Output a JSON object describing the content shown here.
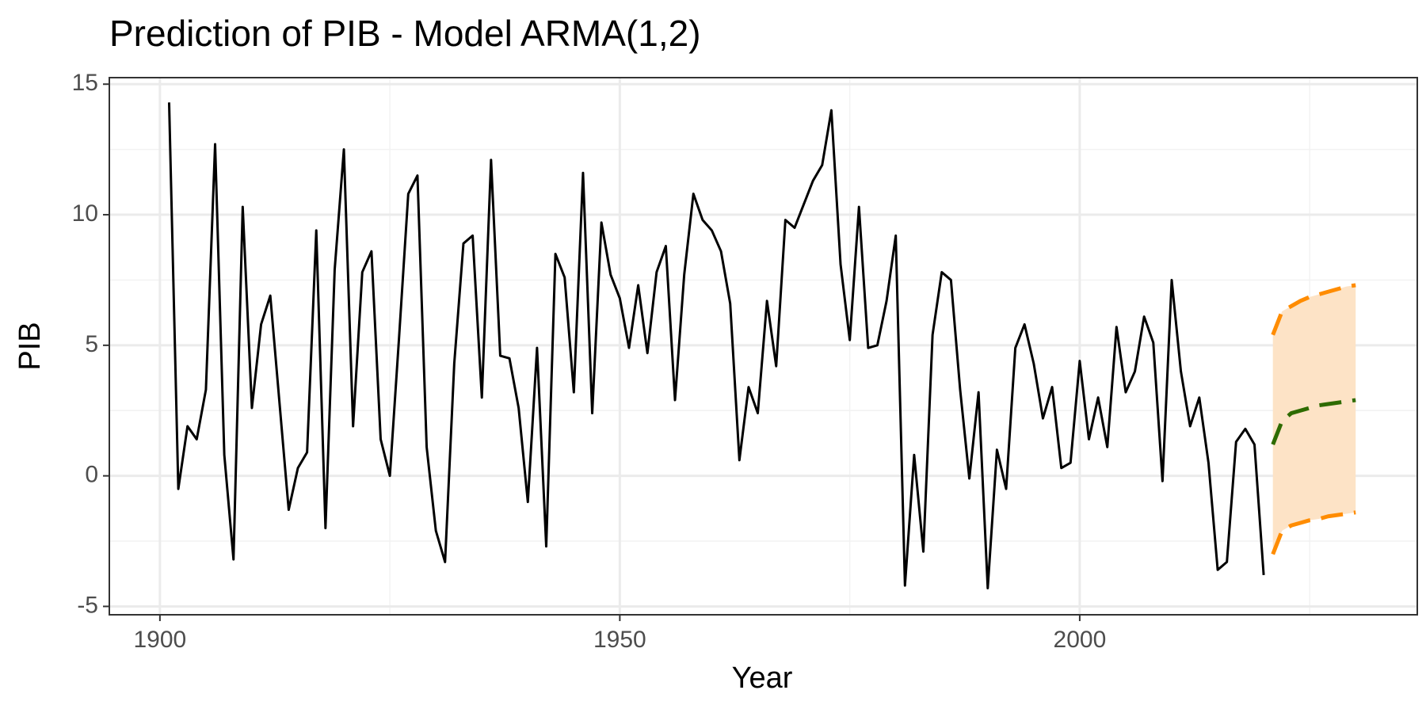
{
  "chart_data": {
    "type": "line",
    "title": "Prediction of PIB - Model ARMA(1,2)",
    "x_label": "Year",
    "y_label": "PIB",
    "x": [
      1901,
      1902,
      1903,
      1904,
      1905,
      1906,
      1907,
      1908,
      1909,
      1910,
      1911,
      1912,
      1913,
      1914,
      1915,
      1916,
      1917,
      1918,
      1919,
      1920,
      1921,
      1922,
      1923,
      1924,
      1925,
      1926,
      1927,
      1928,
      1929,
      1930,
      1931,
      1932,
      1933,
      1934,
      1935,
      1936,
      1937,
      1938,
      1939,
      1940,
      1941,
      1942,
      1943,
      1944,
      1945,
      1946,
      1947,
      1948,
      1949,
      1950,
      1951,
      1952,
      1953,
      1954,
      1955,
      1956,
      1957,
      1958,
      1959,
      1960,
      1961,
      1962,
      1963,
      1964,
      1965,
      1966,
      1967,
      1968,
      1969,
      1970,
      1971,
      1972,
      1973,
      1974,
      1975,
      1976,
      1977,
      1978,
      1979,
      1980,
      1981,
      1982,
      1983,
      1984,
      1985,
      1986,
      1987,
      1988,
      1989,
      1990,
      1991,
      1992,
      1993,
      1994,
      1995,
      1996,
      1997,
      1998,
      1999,
      2000,
      2001,
      2002,
      2003,
      2004,
      2005,
      2006,
      2007,
      2008,
      2009,
      2010,
      2011,
      2012,
      2013,
      2014,
      2015,
      2016,
      2017,
      2018,
      2019,
      2020,
      2021,
      2022,
      2023,
      2024,
      2025,
      2026,
      2027,
      2028,
      2029,
      2030
    ],
    "series": [
      {
        "color": "#000000",
        "values": [
          14.3,
          -0.5,
          1.9,
          1.4,
          3.3,
          12.7,
          0.8,
          -3.2,
          10.3,
          2.6,
          5.8,
          6.9,
          2.8,
          -1.3,
          0.3,
          0.9,
          9.4,
          -2.0,
          7.9,
          12.5,
          1.9,
          7.8,
          8.6,
          1.4,
          0.0,
          5.3,
          10.8,
          11.5,
          1.1,
          -2.1,
          -3.3,
          4.3,
          8.9,
          9.2,
          3.0,
          12.1,
          4.6,
          4.5,
          2.6,
          -1.0,
          4.9,
          -2.7,
          8.5,
          7.6,
          3.2,
          11.6,
          2.4,
          9.7,
          7.7,
          6.8,
          4.9,
          7.3,
          4.7,
          7.8,
          8.8,
          2.9,
          7.7,
          10.8,
          9.8,
          9.4,
          8.6,
          6.6,
          0.6,
          3.4,
          2.4,
          6.7,
          4.2,
          9.8,
          9.5,
          10.4,
          11.3,
          11.9,
          14.0,
          8.1,
          5.2,
          10.3,
          4.9,
          5.0,
          6.7,
          9.2,
          -4.2,
          0.8,
          -2.9,
          5.4,
          7.8,
          7.5,
          3.3,
          -0.1,
          3.2,
          -4.3,
          1.0,
          -0.5,
          4.9,
          5.8,
          4.3,
          2.2,
          3.4,
          0.3,
          0.5,
          4.4,
          1.4,
          3.0,
          1.1,
          5.7,
          3.2,
          4.0,
          6.1,
          5.1,
          -0.2,
          7.5,
          4.0,
          1.9,
          3.0,
          0.5,
          -3.6,
          -3.3,
          1.3,
          1.8,
          1.2,
          -3.8,
          null,
          null,
          null,
          null,
          null,
          null,
          null,
          null,
          null,
          null
        ]
      },
      {
        "color": "#2e6b00",
        "dashed": true,
        "values": [
          null,
          null,
          null,
          null,
          null,
          null,
          null,
          null,
          null,
          null,
          null,
          null,
          null,
          null,
          null,
          null,
          null,
          null,
          null,
          null,
          null,
          null,
          null,
          null,
          null,
          null,
          null,
          null,
          null,
          null,
          null,
          null,
          null,
          null,
          null,
          null,
          null,
          null,
          null,
          null,
          null,
          null,
          null,
          null,
          null,
          null,
          null,
          null,
          null,
          null,
          null,
          null,
          null,
          null,
          null,
          null,
          null,
          null,
          null,
          null,
          null,
          null,
          null,
          null,
          null,
          null,
          null,
          null,
          null,
          null,
          null,
          null,
          null,
          null,
          null,
          null,
          null,
          null,
          null,
          null,
          null,
          null,
          null,
          null,
          null,
          null,
          null,
          null,
          null,
          null,
          null,
          null,
          null,
          null,
          null,
          null,
          null,
          null,
          null,
          null,
          null,
          null,
          null,
          null,
          null,
          null,
          null,
          null,
          null,
          null,
          null,
          null,
          null,
          null,
          null,
          null,
          null,
          null,
          null,
          null,
          1.2,
          2.1,
          2.4,
          2.5,
          2.6,
          2.7,
          2.75,
          2.8,
          2.85,
          2.9
        ]
      },
      {
        "color": "#ff8c00",
        "dashed": true,
        "values": [
          null,
          null,
          null,
          null,
          null,
          null,
          null,
          null,
          null,
          null,
          null,
          null,
          null,
          null,
          null,
          null,
          null,
          null,
          null,
          null,
          null,
          null,
          null,
          null,
          null,
          null,
          null,
          null,
          null,
          null,
          null,
          null,
          null,
          null,
          null,
          null,
          null,
          null,
          null,
          null,
          null,
          null,
          null,
          null,
          null,
          null,
          null,
          null,
          null,
          null,
          null,
          null,
          null,
          null,
          null,
          null,
          null,
          null,
          null,
          null,
          null,
          null,
          null,
          null,
          null,
          null,
          null,
          null,
          null,
          null,
          null,
          null,
          null,
          null,
          null,
          null,
          null,
          null,
          null,
          null,
          null,
          null,
          null,
          null,
          null,
          null,
          null,
          null,
          null,
          null,
          null,
          null,
          null,
          null,
          null,
          null,
          null,
          null,
          null,
          null,
          null,
          null,
          null,
          null,
          null,
          null,
          null,
          null,
          null,
          null,
          null,
          null,
          null,
          null,
          null,
          null,
          null,
          null,
          null,
          null,
          5.4,
          6.3,
          6.5,
          6.7,
          6.85,
          6.95,
          7.05,
          7.15,
          7.25,
          7.3
        ]
      },
      {
        "color": "#ff8c00",
        "dashed": true,
        "values": [
          null,
          null,
          null,
          null,
          null,
          null,
          null,
          null,
          null,
          null,
          null,
          null,
          null,
          null,
          null,
          null,
          null,
          null,
          null,
          null,
          null,
          null,
          null,
          null,
          null,
          null,
          null,
          null,
          null,
          null,
          null,
          null,
          null,
          null,
          null,
          null,
          null,
          null,
          null,
          null,
          null,
          null,
          null,
          null,
          null,
          null,
          null,
          null,
          null,
          null,
          null,
          null,
          null,
          null,
          null,
          null,
          null,
          null,
          null,
          null,
          null,
          null,
          null,
          null,
          null,
          null,
          null,
          null,
          null,
          null,
          null,
          null,
          null,
          null,
          null,
          null,
          null,
          null,
          null,
          null,
          null,
          null,
          null,
          null,
          null,
          null,
          null,
          null,
          null,
          null,
          null,
          null,
          null,
          null,
          null,
          null,
          null,
          null,
          null,
          null,
          null,
          null,
          null,
          null,
          null,
          null,
          null,
          null,
          null,
          null,
          null,
          null,
          null,
          null,
          null,
          null,
          null,
          null,
          null,
          null,
          -3.0,
          -2.1,
          -1.9,
          -1.8,
          -1.7,
          -1.65,
          -1.55,
          -1.5,
          -1.45,
          -1.4
        ]
      }
    ],
    "band": {
      "series": [
        2,
        3
      ],
      "color": "#fde3c6"
    },
    "xlim": [
      1894.5,
      2036.7
    ],
    "ylim": [
      -5.32,
      15.25
    ],
    "xticks": [
      1900,
      1950,
      2000
    ],
    "yticks": [
      -5,
      0,
      5,
      10,
      15
    ],
    "grid": true,
    "minor_grid": true
  }
}
